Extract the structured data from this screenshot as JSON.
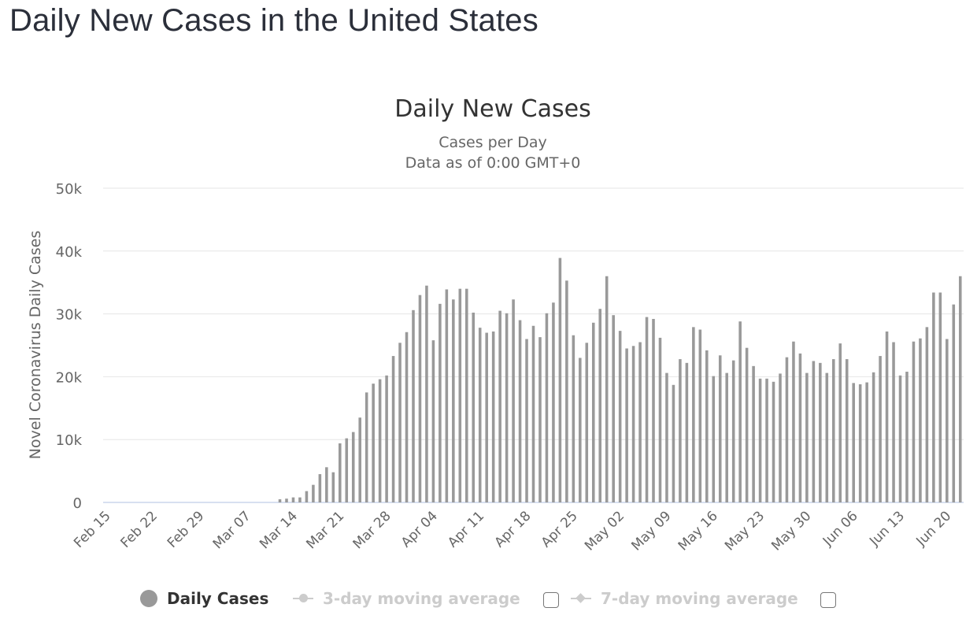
{
  "page": {
    "title": "Daily New Cases in the United States"
  },
  "legend": {
    "items": [
      {
        "label": "Daily Cases",
        "active": true
      },
      {
        "label": "3-day moving average",
        "active": false
      },
      {
        "label": "7-day moving average",
        "active": false
      }
    ]
  },
  "colors": {
    "bar": "#999999",
    "grid": "#e6e6e6",
    "baseline": "#ccd6eb",
    "axis_text": "#666666",
    "title_text": "#333333",
    "inactive_legend": "#cccccc"
  },
  "chart_data": {
    "type": "bar",
    "title": "Daily New Cases",
    "subtitle": [
      "Cases per Day",
      "Data as of 0:00 GMT+0"
    ],
    "ylabel": "Novel Coronavirus Daily Cases",
    "xlabel": "",
    "ylim": [
      0,
      50000
    ],
    "yticks": [
      0,
      10000,
      20000,
      30000,
      40000,
      50000
    ],
    "ytick_labels": [
      "0",
      "10k",
      "20k",
      "30k",
      "40k",
      "50k"
    ],
    "grid": true,
    "legend_position": "bottom",
    "x_tick_labels": [
      "Feb 15",
      "Feb 22",
      "Feb 29",
      "Mar 07",
      "Mar 14",
      "Mar 21",
      "Mar 28",
      "Apr 04",
      "Apr 11",
      "Apr 18",
      "Apr 25",
      "May 02",
      "May 09",
      "May 16",
      "May 23",
      "May 30",
      "Jun 06",
      "Jun 13",
      "Jun 20"
    ],
    "categories": [
      "Feb 15",
      "Feb 16",
      "Feb 17",
      "Feb 18",
      "Feb 19",
      "Feb 20",
      "Feb 21",
      "Feb 22",
      "Feb 23",
      "Feb 24",
      "Feb 25",
      "Feb 26",
      "Feb 27",
      "Feb 28",
      "Feb 29",
      "Mar 01",
      "Mar 02",
      "Mar 03",
      "Mar 04",
      "Mar 05",
      "Mar 06",
      "Mar 07",
      "Mar 08",
      "Mar 09",
      "Mar 10",
      "Mar 11",
      "Mar 12",
      "Mar 13",
      "Mar 14",
      "Mar 15",
      "Mar 16",
      "Mar 17",
      "Mar 18",
      "Mar 19",
      "Mar 20",
      "Mar 21",
      "Mar 22",
      "Mar 23",
      "Mar 24",
      "Mar 25",
      "Mar 26",
      "Mar 27",
      "Mar 28",
      "Mar 29",
      "Mar 30",
      "Mar 31",
      "Apr 01",
      "Apr 02",
      "Apr 03",
      "Apr 04",
      "Apr 05",
      "Apr 06",
      "Apr 07",
      "Apr 08",
      "Apr 09",
      "Apr 10",
      "Apr 11",
      "Apr 12",
      "Apr 13",
      "Apr 14",
      "Apr 15",
      "Apr 16",
      "Apr 17",
      "Apr 18",
      "Apr 19",
      "Apr 20",
      "Apr 21",
      "Apr 22",
      "Apr 23",
      "Apr 24",
      "Apr 25",
      "Apr 26",
      "Apr 27",
      "Apr 28",
      "Apr 29",
      "Apr 30",
      "May 01",
      "May 02",
      "May 03",
      "May 04",
      "May 05",
      "May 06",
      "May 07",
      "May 08",
      "May 09",
      "May 10",
      "May 11",
      "May 12",
      "May 13",
      "May 14",
      "May 15",
      "May 16",
      "May 17",
      "May 18",
      "May 19",
      "May 20",
      "May 21",
      "May 22",
      "May 23",
      "May 24",
      "May 25",
      "May 26",
      "May 27",
      "May 28",
      "May 29",
      "May 30",
      "May 31",
      "Jun 01",
      "Jun 02",
      "Jun 03",
      "Jun 04",
      "Jun 05",
      "Jun 06",
      "Jun 07",
      "Jun 08",
      "Jun 09",
      "Jun 10",
      "Jun 11",
      "Jun 12",
      "Jun 13",
      "Jun 14",
      "Jun 15",
      "Jun 16",
      "Jun 17",
      "Jun 18",
      "Jun 19",
      "Jun 20",
      "Jun 21",
      "Jun 22"
    ],
    "series": [
      {
        "name": "Daily Cases",
        "values": [
          0,
          0,
          0,
          0,
          0,
          0,
          0,
          0,
          0,
          0,
          0,
          0,
          0,
          0,
          0,
          0,
          0,
          0,
          0,
          0,
          0,
          0,
          0,
          0,
          0,
          0,
          500,
          600,
          800,
          800,
          1800,
          2800,
          4500,
          5600,
          4800,
          9400,
          10200,
          11200,
          13500,
          17500,
          18900,
          19600,
          20200,
          23300,
          25400,
          27100,
          30600,
          33000,
          34500,
          25800,
          31600,
          33900,
          32300,
          34000,
          34000,
          30200,
          27800,
          27000,
          27200,
          30500,
          30100,
          32300,
          29000,
          26000,
          28100,
          26300,
          30100,
          31800,
          38900,
          35300,
          26600,
          23000,
          25400,
          28600,
          30800,
          36000,
          29800,
          27300,
          24500,
          24900,
          25500,
          29500,
          29200,
          26200,
          20600,
          18700,
          22800,
          22200,
          27900,
          27500,
          24200,
          20100,
          23400,
          20600,
          22600,
          28800,
          24600,
          21700,
          19700,
          19700,
          19200,
          20500,
          23100,
          25600,
          23700,
          20600,
          22500,
          22200,
          20600,
          22800,
          25300,
          22800,
          19000,
          18800,
          19100,
          20700,
          23300,
          27200,
          25500,
          20200,
          20800,
          25600,
          26100,
          27900,
          33400,
          33400,
          26000,
          31500,
          36000
        ]
      }
    ]
  }
}
